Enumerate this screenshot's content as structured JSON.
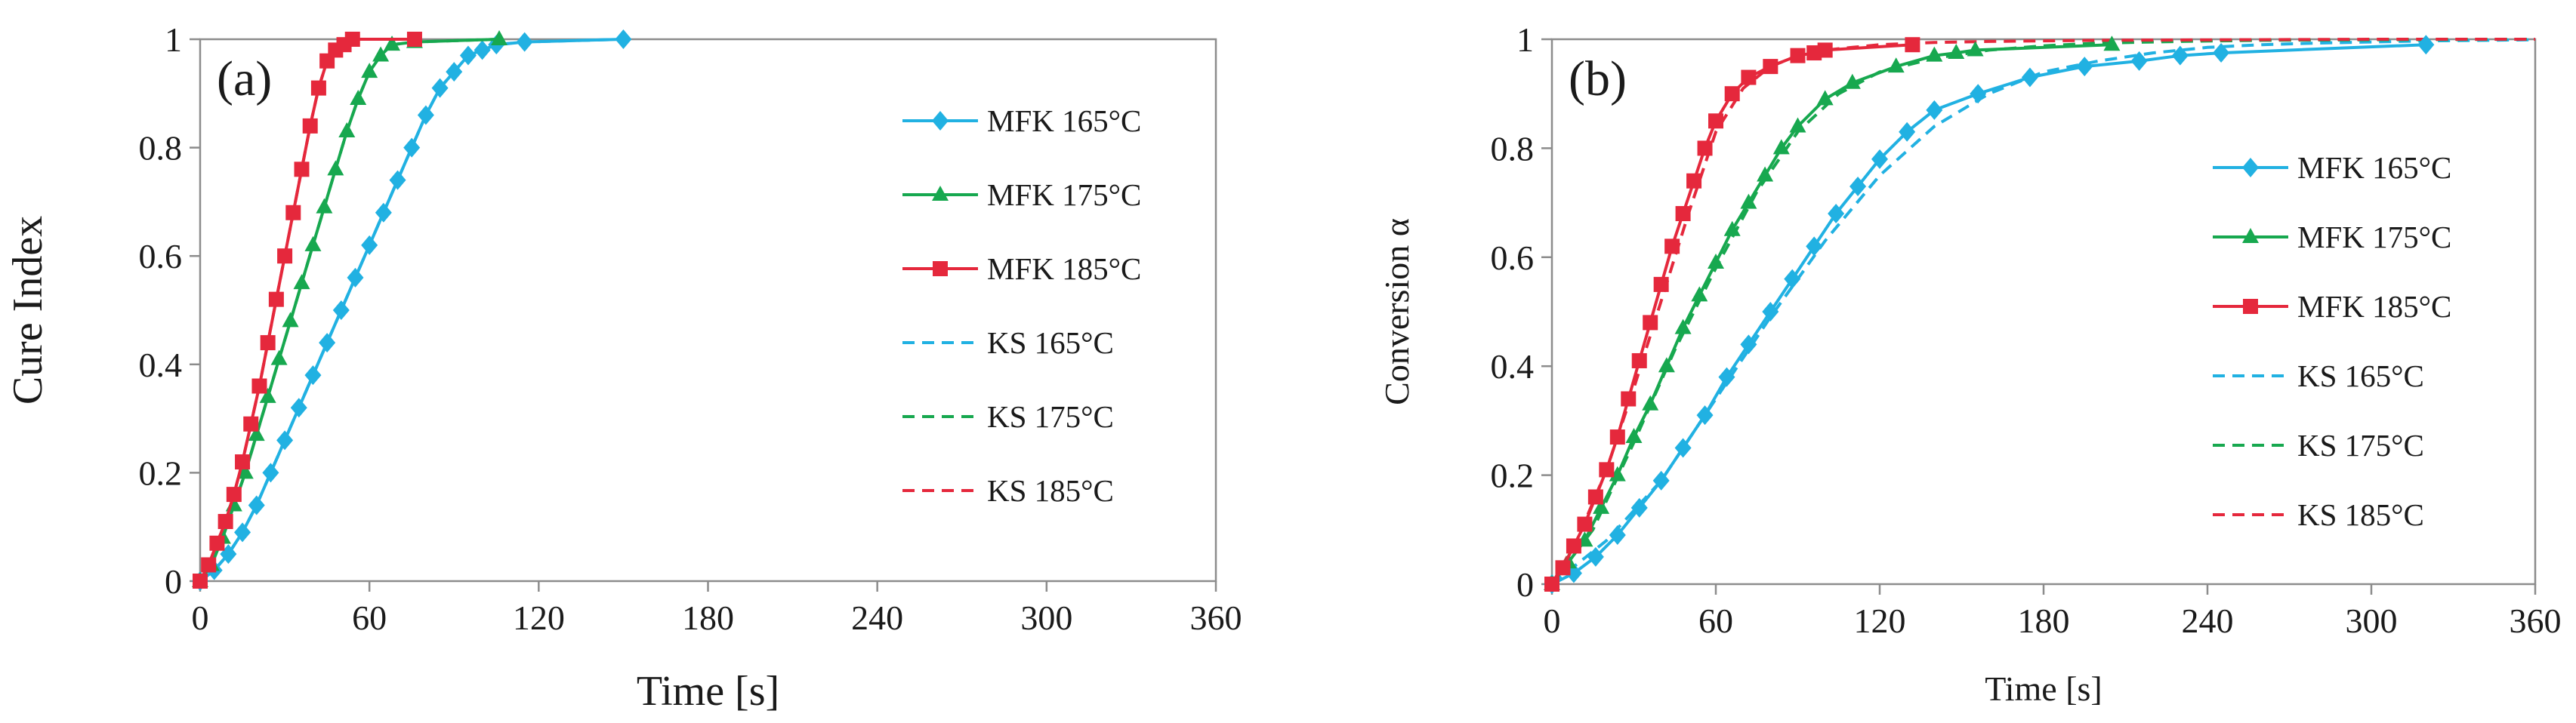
{
  "chart_data": [
    {
      "type": "line",
      "panel_label": "(a)",
      "xlabel": "Time [s]",
      "ylabel": "Cure Index",
      "xlim": [
        0,
        360
      ],
      "ylim": [
        0,
        1
      ],
      "xticks": [
        0,
        60,
        120,
        180,
        240,
        300,
        360
      ],
      "yticks": [
        "0",
        "0.2",
        "0.4",
        "0.6",
        "0.8",
        "1"
      ],
      "ytick_values": [
        0,
        0.2,
        0.4,
        0.6,
        0.8,
        1
      ],
      "grid": false,
      "legend_position": "right",
      "series": [
        {
          "name": "MFK 165°C",
          "color": "#21b1e2",
          "marker": "diamond",
          "line": "solid",
          "x": [
            0,
            5,
            10,
            15,
            20,
            25,
            30,
            35,
            40,
            45,
            50,
            55,
            60,
            65,
            70,
            75,
            80,
            85,
            90,
            95,
            100,
            105,
            115,
            150
          ],
          "y": [
            0,
            0.02,
            0.05,
            0.09,
            0.14,
            0.2,
            0.26,
            0.32,
            0.38,
            0.44,
            0.5,
            0.56,
            0.62,
            0.68,
            0.74,
            0.8,
            0.86,
            0.91,
            0.94,
            0.97,
            0.98,
            0.99,
            0.995,
            1.0
          ]
        },
        {
          "name": "MFK 175°C",
          "color": "#17a84f",
          "marker": "triangle",
          "line": "solid",
          "x": [
            0,
            4,
            8,
            12,
            16,
            20,
            24,
            28,
            32,
            36,
            40,
            44,
            48,
            52,
            56,
            60,
            64,
            68,
            76,
            106
          ],
          "y": [
            0,
            0.03,
            0.08,
            0.14,
            0.2,
            0.27,
            0.34,
            0.41,
            0.48,
            0.55,
            0.62,
            0.69,
            0.76,
            0.83,
            0.89,
            0.94,
            0.97,
            0.99,
            0.995,
            1.0
          ]
        },
        {
          "name": "MFK 185°C",
          "color": "#e5283c",
          "marker": "square",
          "line": "solid",
          "x": [
            0,
            3,
            6,
            9,
            12,
            15,
            18,
            21,
            24,
            27,
            30,
            33,
            36,
            39,
            42,
            45,
            48,
            51,
            54,
            76
          ],
          "y": [
            0,
            0.03,
            0.07,
            0.11,
            0.16,
            0.22,
            0.29,
            0.36,
            0.44,
            0.52,
            0.6,
            0.68,
            0.76,
            0.84,
            0.91,
            0.96,
            0.98,
            0.99,
            1.0,
            1.0
          ]
        },
        {
          "name": "KS 165°C",
          "color": "#21b1e2",
          "marker": "none",
          "line": "dashed",
          "x": [
            0,
            5,
            10,
            15,
            20,
            25,
            30,
            35,
            40,
            45,
            50,
            55,
            60,
            65,
            70,
            75,
            80,
            85,
            90,
            95,
            100,
            105,
            115,
            150
          ],
          "y": [
            0,
            0.02,
            0.05,
            0.09,
            0.14,
            0.2,
            0.26,
            0.32,
            0.38,
            0.44,
            0.5,
            0.56,
            0.62,
            0.68,
            0.74,
            0.8,
            0.86,
            0.91,
            0.94,
            0.97,
            0.98,
            0.99,
            0.995,
            1.0
          ]
        },
        {
          "name": "KS 175°C",
          "color": "#17a84f",
          "marker": "none",
          "line": "dashed",
          "x": [
            0,
            4,
            8,
            12,
            16,
            20,
            24,
            28,
            32,
            36,
            40,
            44,
            48,
            52,
            56,
            60,
            64,
            68,
            76,
            106
          ],
          "y": [
            0,
            0.03,
            0.08,
            0.14,
            0.2,
            0.27,
            0.34,
            0.41,
            0.48,
            0.55,
            0.62,
            0.69,
            0.76,
            0.83,
            0.89,
            0.94,
            0.97,
            0.99,
            0.995,
            1.0
          ]
        },
        {
          "name": "KS 185°C",
          "color": "#e5283c",
          "marker": "none",
          "line": "dashed",
          "x": [
            0,
            3,
            6,
            9,
            12,
            15,
            18,
            21,
            24,
            27,
            30,
            33,
            36,
            39,
            42,
            45,
            48,
            51,
            54,
            76
          ],
          "y": [
            0,
            0.03,
            0.07,
            0.11,
            0.16,
            0.22,
            0.29,
            0.36,
            0.44,
            0.52,
            0.6,
            0.68,
            0.76,
            0.84,
            0.91,
            0.96,
            0.98,
            0.99,
            1.0,
            1.0
          ]
        }
      ]
    },
    {
      "type": "line",
      "panel_label": "(b)",
      "xlabel": "Time [s]",
      "ylabel": "Conversion α",
      "xlim": [
        0,
        360
      ],
      "ylim": [
        0,
        1
      ],
      "xticks": [
        0,
        60,
        120,
        180,
        240,
        300,
        360
      ],
      "yticks": [
        "0",
        "0.2",
        "0.4",
        "0.6",
        "0.8",
        "1"
      ],
      "ytick_values": [
        0,
        0.2,
        0.4,
        0.6,
        0.8,
        1
      ],
      "grid": false,
      "legend_position": "right",
      "series": [
        {
          "name": "MFK 165°C",
          "color": "#21b1e2",
          "marker": "diamond",
          "line": "solid",
          "x": [
            0,
            8,
            16,
            24,
            32,
            40,
            48,
            56,
            64,
            72,
            80,
            88,
            96,
            104,
            112,
            120,
            130,
            140,
            156,
            175,
            195,
            215,
            230,
            245,
            320
          ],
          "y": [
            0,
            0.02,
            0.05,
            0.09,
            0.14,
            0.19,
            0.25,
            0.31,
            0.38,
            0.44,
            0.5,
            0.56,
            0.62,
            0.68,
            0.73,
            0.78,
            0.83,
            0.87,
            0.9,
            0.93,
            0.95,
            0.96,
            0.97,
            0.975,
            0.99
          ]
        },
        {
          "name": "MFK 175°C",
          "color": "#17a84f",
          "marker": "triangle",
          "line": "solid",
          "x": [
            0,
            6,
            12,
            18,
            24,
            30,
            36,
            42,
            48,
            54,
            60,
            66,
            72,
            78,
            84,
            90,
            100,
            110,
            126,
            140,
            148,
            155,
            205
          ],
          "y": [
            0,
            0.04,
            0.08,
            0.14,
            0.2,
            0.27,
            0.33,
            0.4,
            0.47,
            0.53,
            0.59,
            0.65,
            0.7,
            0.75,
            0.8,
            0.84,
            0.89,
            0.92,
            0.95,
            0.97,
            0.975,
            0.98,
            0.99
          ]
        },
        {
          "name": "MFK 185°C",
          "color": "#e5283c",
          "marker": "square",
          "line": "solid",
          "x": [
            0,
            4,
            8,
            12,
            16,
            20,
            24,
            28,
            32,
            36,
            40,
            44,
            48,
            52,
            56,
            60,
            66,
            72,
            80,
            90,
            96,
            100,
            132
          ],
          "y": [
            0,
            0.03,
            0.07,
            0.11,
            0.16,
            0.21,
            0.27,
            0.34,
            0.41,
            0.48,
            0.55,
            0.62,
            0.68,
            0.74,
            0.8,
            0.85,
            0.9,
            0.93,
            0.95,
            0.97,
            0.975,
            0.98,
            0.99
          ]
        },
        {
          "name": "KS 165°C",
          "color": "#21b1e2",
          "marker": "none",
          "line": "dashed",
          "x": [
            0,
            20,
            40,
            60,
            80,
            100,
            120,
            140,
            160,
            180,
            200,
            220,
            240,
            260,
            280,
            300,
            320,
            360
          ],
          "y": [
            0,
            0.08,
            0.19,
            0.34,
            0.49,
            0.63,
            0.75,
            0.84,
            0.9,
            0.94,
            0.96,
            0.975,
            0.985,
            0.99,
            0.993,
            0.995,
            0.997,
            0.999
          ]
        },
        {
          "name": "KS 175°C",
          "color": "#17a84f",
          "marker": "none",
          "line": "dashed",
          "x": [
            0,
            15,
            30,
            45,
            60,
            75,
            90,
            105,
            120,
            140,
            160,
            180,
            200,
            230,
            260,
            300,
            360
          ],
          "y": [
            0,
            0.1,
            0.26,
            0.43,
            0.58,
            0.72,
            0.83,
            0.9,
            0.94,
            0.965,
            0.98,
            0.988,
            0.993,
            0.996,
            0.998,
            0.999,
            1.0
          ]
        },
        {
          "name": "KS 185°C",
          "color": "#e5283c",
          "marker": "none",
          "line": "dashed",
          "x": [
            0,
            10,
            20,
            30,
            40,
            50,
            60,
            70,
            80,
            90,
            100,
            110,
            120,
            140,
            160,
            200,
            250,
            300,
            360
          ],
          "y": [
            0,
            0.09,
            0.21,
            0.36,
            0.52,
            0.68,
            0.83,
            0.91,
            0.95,
            0.97,
            0.98,
            0.985,
            0.99,
            0.994,
            0.996,
            0.998,
            0.999,
            1.0,
            1.0
          ]
        }
      ]
    }
  ]
}
